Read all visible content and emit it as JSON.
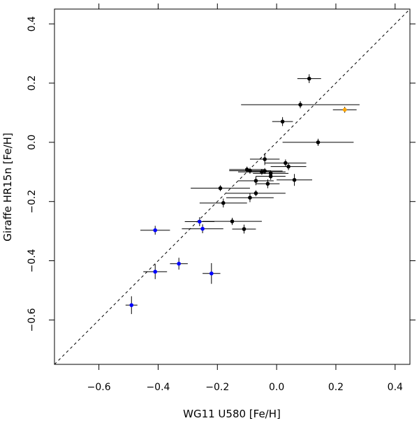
{
  "chart_data": {
    "type": "scatter",
    "title": "",
    "xlabel": "WG11 U580 [Fe/H]",
    "ylabel": "Giraffe HR15n [Fe/H]",
    "xlim": [
      -0.75,
      0.45
    ],
    "ylim": [
      -0.75,
      0.45
    ],
    "xticks": [
      -0.6,
      -0.4,
      -0.2,
      0.0,
      0.2,
      0.4
    ],
    "yticks": [
      -0.6,
      -0.4,
      -0.2,
      0.0,
      0.2,
      0.4
    ],
    "xtick_labels": [
      "−0.6",
      "−0.4",
      "−0.2",
      "0.0",
      "0.2",
      "0.4"
    ],
    "ytick_labels": [
      "−0.6",
      "−0.4",
      "−0.2",
      "0.0",
      "0.2",
      "0.4"
    ],
    "reference_line": {
      "style": "dashed",
      "description": "1:1",
      "x": [
        -0.75,
        0.45
      ],
      "y": [
        -0.75,
        0.45
      ]
    },
    "colors": {
      "black": "#000000",
      "blue": "#0000ff",
      "orange": "#ffa500",
      "errorbar": "#000000"
    },
    "series": [
      {
        "name": "black",
        "color": "#000000",
        "points": [
          {
            "x": 0.11,
            "y": 0.215,
            "xerr": 0.04,
            "yerr": 0.015
          },
          {
            "x": 0.08,
            "y": 0.127,
            "xerr": 0.2,
            "yerr": 0.012
          },
          {
            "x": 0.02,
            "y": 0.07,
            "xerr": 0.035,
            "yerr": 0.015
          },
          {
            "x": 0.14,
            "y": 0.0,
            "xerr": 0.12,
            "yerr": 0.012
          },
          {
            "x": -0.04,
            "y": -0.057,
            "xerr": 0.05,
            "yerr": 0.02
          },
          {
            "x": 0.03,
            "y": -0.07,
            "xerr": 0.07,
            "yerr": 0.012
          },
          {
            "x": 0.04,
            "y": -0.082,
            "xerr": 0.06,
            "yerr": 0.012
          },
          {
            "x": -0.1,
            "y": -0.092,
            "xerr": 0.06,
            "yerr": 0.01
          },
          {
            "x": -0.09,
            "y": -0.096,
            "xerr": 0.07,
            "yerr": 0.01
          },
          {
            "x": -0.05,
            "y": -0.1,
            "xerr": 0.08,
            "yerr": 0.01
          },
          {
            "x": -0.04,
            "y": -0.097,
            "xerr": 0.06,
            "yerr": 0.01
          },
          {
            "x": -0.02,
            "y": -0.105,
            "xerr": 0.06,
            "yerr": 0.01
          },
          {
            "x": -0.02,
            "y": -0.115,
            "xerr": 0.05,
            "yerr": 0.012
          },
          {
            "x": 0.06,
            "y": -0.127,
            "xerr": 0.06,
            "yerr": 0.02
          },
          {
            "x": -0.07,
            "y": -0.13,
            "xerr": 0.06,
            "yerr": 0.015
          },
          {
            "x": -0.03,
            "y": -0.14,
            "xerr": 0.04,
            "yerr": 0.015
          },
          {
            "x": -0.19,
            "y": -0.155,
            "xerr": 0.1,
            "yerr": 0.01
          },
          {
            "x": -0.07,
            "y": -0.172,
            "xerr": 0.1,
            "yerr": 0.01
          },
          {
            "x": -0.09,
            "y": -0.187,
            "xerr": 0.08,
            "yerr": 0.015
          },
          {
            "x": -0.18,
            "y": -0.205,
            "xerr": 0.08,
            "yerr": 0.015
          },
          {
            "x": -0.15,
            "y": -0.267,
            "xerr": 0.1,
            "yerr": 0.012
          },
          {
            "x": -0.11,
            "y": -0.293,
            "xerr": 0.04,
            "yerr": 0.015
          }
        ]
      },
      {
        "name": "blue",
        "color": "#0000ff",
        "points": [
          {
            "x": -0.26,
            "y": -0.268,
            "xerr": 0.05,
            "yerr": 0.015
          },
          {
            "x": -0.25,
            "y": -0.292,
            "xerr": 0.07,
            "yerr": 0.015
          },
          {
            "x": -0.41,
            "y": -0.297,
            "xerr": 0.05,
            "yerr": 0.015
          },
          {
            "x": -0.33,
            "y": -0.41,
            "xerr": 0.03,
            "yerr": 0.02
          },
          {
            "x": -0.41,
            "y": -0.437,
            "xerr": 0.04,
            "yerr": 0.025
          },
          {
            "x": -0.22,
            "y": -0.443,
            "xerr": 0.03,
            "yerr": 0.035
          },
          {
            "x": -0.49,
            "y": -0.55,
            "xerr": 0.02,
            "yerr": 0.03
          }
        ]
      },
      {
        "name": "orange",
        "color": "#ffa500",
        "points": [
          {
            "x": 0.23,
            "y": 0.11,
            "xerr": 0.04,
            "yerr": 0.01
          }
        ]
      }
    ]
  }
}
